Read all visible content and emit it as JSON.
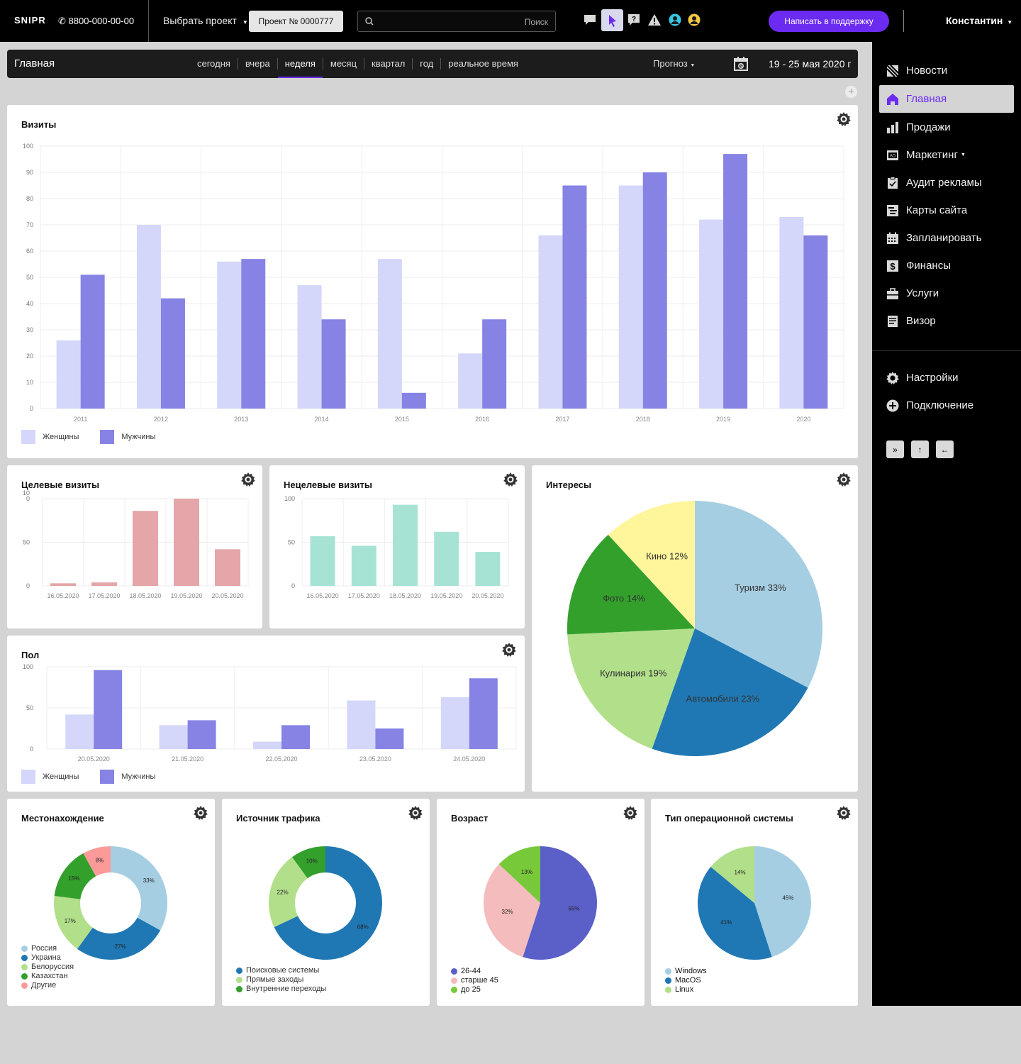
{
  "topbar": {
    "logo": "SNIPR",
    "phone": "8800-000-00-00",
    "project_select": "Выбрать проект",
    "project_number": "Проект № 0000777",
    "search_placeholder": "Поиск",
    "support_label": "Написать в поддержку",
    "user_name": "Константин"
  },
  "sidebar": {
    "items": [
      {
        "label": "Новости",
        "icon": "news-icon"
      },
      {
        "label": "Главная",
        "icon": "home-icon"
      },
      {
        "label": "Продажи",
        "icon": "sales-icon"
      },
      {
        "label": "Маркетинг",
        "icon": "ads-icon"
      },
      {
        "label": "Аудит рекламы",
        "icon": "clipboard-icon"
      },
      {
        "label": "Карты сайта",
        "icon": "sitemap-icon"
      },
      {
        "label": "Запланировать",
        "icon": "calendar-icon"
      },
      {
        "label": "Финансы",
        "icon": "dollar-icon"
      },
      {
        "label": "Услуги",
        "icon": "briefcase-icon"
      },
      {
        "label": "Визор",
        "icon": "document-icon"
      }
    ],
    "bottom_items": [
      {
        "label": "Настройки",
        "icon": "gear-icon"
      },
      {
        "label": "Подключение",
        "icon": "plus-circle-icon"
      }
    ],
    "buttons": [
      "»",
      "↑",
      "←"
    ],
    "accent": "#6c2bf1"
  },
  "mainbar": {
    "title": "Главная",
    "periods": [
      "сегодня",
      "вчера",
      "неделя",
      "месяц",
      "квартал",
      "год",
      "реальное время"
    ],
    "active_period": "неделя",
    "forecast": "Прогноз",
    "date_range": "19 - 25 мая 2020 г"
  },
  "cards": {
    "visits": "Визиты",
    "target": "Целевые визиты",
    "nontarget": "Нецелевые визиты",
    "interests": "Интересы",
    "gender": "Пол",
    "location": "Местонахождение",
    "traffic": "Источник трафика",
    "age": "Возраст",
    "os": "Тип операционной системы"
  },
  "chart_data": [
    {
      "id": "visits",
      "type": "bar",
      "title": "Визиты",
      "categories": [
        "2011",
        "2012",
        "2013",
        "2014",
        "2015",
        "2016",
        "2017",
        "2018",
        "2019",
        "2020"
      ],
      "series": [
        {
          "name": "Женщины",
          "color": "#d4d7fa",
          "values": [
            26,
            70,
            56,
            47,
            57,
            21,
            66,
            85,
            72,
            73
          ]
        },
        {
          "name": "Мужчины",
          "color": "#8683e5",
          "values": [
            51,
            42,
            57,
            34,
            6,
            34,
            85,
            90,
            97,
            66
          ]
        }
      ],
      "ylim": [
        0,
        100
      ],
      "yticks": [
        0,
        10,
        20,
        30,
        40,
        50,
        60,
        70,
        80,
        90,
        100
      ],
      "grid": true,
      "legend": "bottom-left"
    },
    {
      "id": "target",
      "type": "bar",
      "title": "Целевые визиты",
      "categories": [
        "16.05.2020",
        "17.05.2020",
        "18.05.2020",
        "19.05.2020",
        "20.05.2020"
      ],
      "series": [
        {
          "color": "#e4a6a8",
          "values": [
            3,
            4,
            86,
            100,
            42
          ]
        }
      ],
      "ylim": [
        0,
        100
      ],
      "yticks": [
        "0",
        "50",
        "10\n0"
      ],
      "grid": true
    },
    {
      "id": "nontarget",
      "type": "bar",
      "title": "Нецелевые визиты",
      "categories": [
        "16.05.2020",
        "17.05.2020",
        "18.05.2020",
        "19.05.2020",
        "20.05.2020"
      ],
      "series": [
        {
          "color": "#a7e3d5",
          "values": [
            57,
            46,
            93,
            62,
            39
          ]
        }
      ],
      "ylim": [
        0,
        100
      ],
      "yticks": [
        "0",
        "50",
        "100"
      ],
      "grid": true
    },
    {
      "id": "gender",
      "type": "bar",
      "title": "Пол",
      "categories": [
        "20.05.2020",
        "21.05.2020",
        "22.05.2020",
        "23.05.2020",
        "24.05.2020"
      ],
      "series": [
        {
          "name": "Женщины",
          "color": "#d4d7fa",
          "values": [
            42,
            29,
            9,
            59,
            63
          ]
        },
        {
          "name": "Мужчины",
          "color": "#8683e5",
          "values": [
            96,
            35,
            29,
            25,
            86
          ]
        }
      ],
      "ylim": [
        0,
        100
      ],
      "yticks": [
        "0",
        "50",
        "100"
      ],
      "grid": true,
      "legend": "bottom-left"
    },
    {
      "id": "interests",
      "type": "pie",
      "title": "Интересы",
      "slices": [
        {
          "label": "Туризм 33%",
          "value": 33,
          "color": "#a6cee3"
        },
        {
          "label": "Автомобили 23%",
          "value": 23,
          "color": "#1f78b4"
        },
        {
          "label": "Кулинария 19%",
          "value": 19,
          "color": "#b2df8a"
        },
        {
          "label": "Фото 14%",
          "value": 14,
          "color": "#33a02c"
        },
        {
          "label": "Кино 12%",
          "value": 12,
          "color": "#fff59a"
        }
      ]
    },
    {
      "id": "location",
      "type": "pie",
      "donut": true,
      "title": "Местонахождение",
      "slices": [
        {
          "label": "Россия",
          "value": 33,
          "text": "33%",
          "color": "#a6cee3"
        },
        {
          "label": "Украина",
          "value": 27,
          "text": "27%",
          "color": "#1f78b4"
        },
        {
          "label": "Белоруссия",
          "value": 17,
          "text": "17%",
          "color": "#b2df8a"
        },
        {
          "label": "Казахстан",
          "value": 15,
          "text": "15%",
          "color": "#33a02c"
        },
        {
          "label": "Другие",
          "value": 8,
          "text": "8%",
          "color": "#fb9a99"
        }
      ]
    },
    {
      "id": "traffic",
      "type": "pie",
      "donut": true,
      "title": "Источник трафика",
      "slices": [
        {
          "label": "Поисковые системы",
          "value": 68,
          "text": "68%",
          "color": "#1f78b4"
        },
        {
          "label": "Прямые заходы",
          "value": 22,
          "text": "22%",
          "color": "#b2df8a"
        },
        {
          "label": "Внутренние переходы",
          "value": 10,
          "text": "10%",
          "color": "#33a02c"
        }
      ]
    },
    {
      "id": "age",
      "type": "pie",
      "title": "Возраст",
      "slices": [
        {
          "label": "26-44",
          "value": 55,
          "text": "55%",
          "color": "#5b60c8"
        },
        {
          "label": "старше 45",
          "value": 32,
          "text": "32%",
          "color": "#f4bcbc"
        },
        {
          "label": "до 25",
          "value": 13,
          "text": "13%",
          "color": "#78c93a"
        }
      ]
    },
    {
      "id": "os",
      "type": "pie",
      "title": "Тип операционной системы",
      "slices": [
        {
          "label": "Windows",
          "value": 45,
          "text": "45%",
          "color": "#a6cee3"
        },
        {
          "label": "MacOS",
          "value": 41,
          "text": "41%",
          "color": "#1f78b4"
        },
        {
          "label": "Linux",
          "value": 14,
          "text": "14%",
          "color": "#b2df8a"
        }
      ]
    }
  ]
}
